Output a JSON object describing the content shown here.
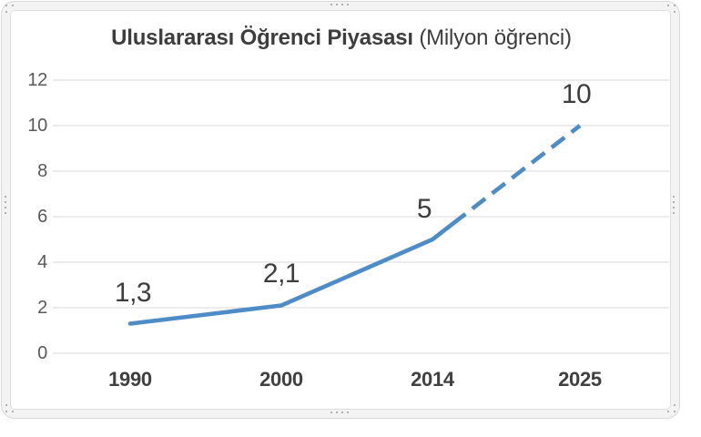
{
  "window": {
    "type": "embedded chart object",
    "selected": true
  },
  "chart_data": {
    "type": "line",
    "title": "Uluslararası Öğrenci Piyasası (Milyon öğrenci)",
    "title_bold": "Uluslararası Öğrenci Piyasası",
    "title_regular": " (Milyon öğrenci)",
    "categories": [
      "1990",
      "2000",
      "2014",
      "2025"
    ],
    "values": [
      1.3,
      2.1,
      5,
      10
    ],
    "data_labels": [
      "1,3",
      "2,1",
      "5",
      "10"
    ],
    "y_ticks": [
      12,
      10,
      8,
      6,
      4,
      2,
      0
    ],
    "ylim": [
      0,
      12
    ],
    "xlabel": "",
    "ylabel": "",
    "legend": "none",
    "grid": "horizontal",
    "line_color": "#4e8cc7",
    "line_style": {
      "solid_segment": [
        "1990",
        "2000",
        "2014"
      ],
      "dashed_projection_segment": [
        "2014",
        "2025"
      ]
    }
  },
  "ui": {
    "background": "#ffffff",
    "frame_border_color": "#d9d9d9",
    "frame_band_fill": "#f3f3f3",
    "handle_dot_color": "#9b9b9b",
    "grid_color": "#d9d9d9",
    "title_color": "#3d3d3d",
    "y_tick_color": "#595959",
    "x_tick_color": "#404040",
    "data_label_color": "#3d3d3d"
  }
}
